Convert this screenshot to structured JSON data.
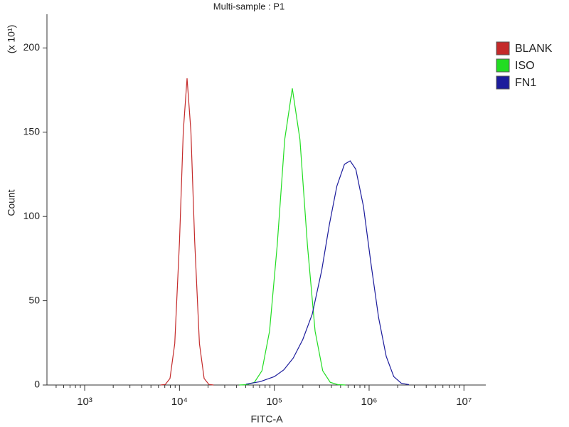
{
  "chart_data": {
    "type": "line",
    "title": "Multi-sample : P1",
    "xlabel": "FITC-A",
    "ylabel": "Count",
    "y_multiplier": "(x 10¹)",
    "xscale": "log",
    "xlim": [
      400,
      17000000
    ],
    "xticks": [
      {
        "value": 1000,
        "label": "10³"
      },
      {
        "value": 10000,
        "label": "10⁴"
      },
      {
        "value": 100000,
        "label": "10⁵"
      },
      {
        "value": 1000000,
        "label": "10⁶"
      },
      {
        "value": 10000000,
        "label": "10⁷"
      }
    ],
    "xminorticks": [
      500,
      600,
      700,
      800,
      900,
      2000,
      3000,
      4000,
      5000,
      6000,
      7000,
      8000,
      9000,
      20000,
      30000,
      40000,
      50000,
      60000,
      70000,
      80000,
      90000,
      200000,
      300000,
      400000,
      500000,
      600000,
      700000,
      800000,
      900000,
      2000000,
      3000000,
      4000000,
      5000000,
      6000000,
      7000000,
      8000000,
      9000000
    ],
    "ylim": [
      0,
      220
    ],
    "yticks": [
      0,
      50,
      100,
      150,
      200
    ],
    "legend": "right",
    "series": [
      {
        "name": "BLANK",
        "color": "#c42a2a",
        "x": [
          6310,
          7079,
          7943,
          8913,
          10000,
          10965,
          12023,
          13183,
          14454,
          16218,
          18197,
          20417,
          22909
        ],
        "values": [
          0.02,
          0.35,
          3.9,
          24.6,
          85.5,
          150.6,
          182,
          150.6,
          85.5,
          24.6,
          3.9,
          0.35,
          0.02
        ]
      },
      {
        "name": "ISO",
        "color": "#22dd22",
        "x": [
          42658,
          51286,
          61660,
          74131,
          89125,
          107152,
          128825,
          154882,
          186209,
          223872,
          269153,
          323594,
          389045,
          467735,
          562341
        ],
        "values": [
          0.02,
          0.2,
          1.6,
          8.5,
          32,
          82.7,
          145.7,
          176,
          145.7,
          82.7,
          32,
          8.5,
          1.6,
          0.2,
          0.02
        ]
      },
      {
        "name": "FN1",
        "color": "#1c1c9c",
        "x": [
          50119,
          70795,
          100000,
          125893,
          158489,
          199526,
          251189,
          316228,
          380189,
          457088,
          549541,
          630957,
          724436,
          870964,
          1047129,
          1258925,
          1513561,
          1819701,
          2187762,
          2630268
        ],
        "values": [
          0.5,
          2,
          5,
          9,
          16,
          27,
          42,
          68,
          95,
          118,
          131,
          133,
          128,
          106,
          72,
          40,
          17,
          5,
          1,
          0.2
        ]
      }
    ]
  }
}
